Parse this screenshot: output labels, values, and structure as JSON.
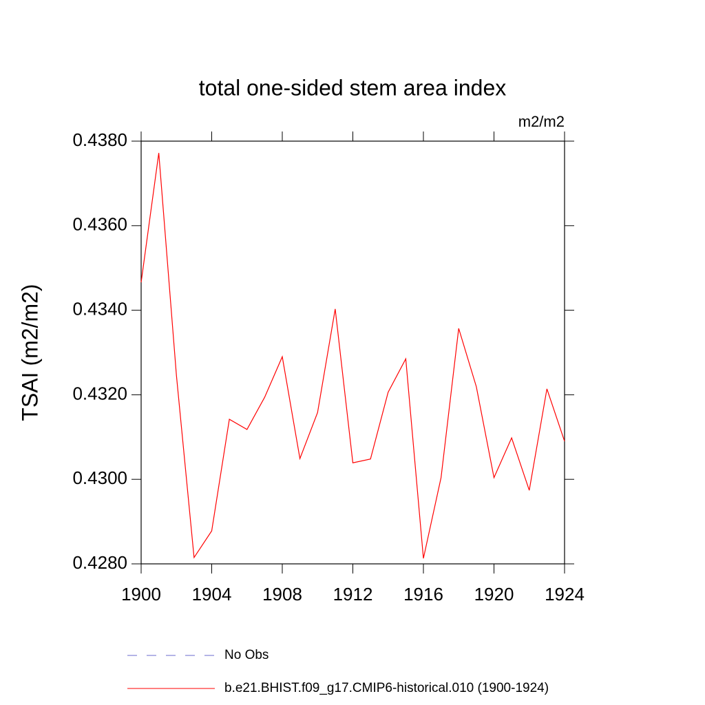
{
  "chart_data": {
    "type": "line",
    "title": "total one-sided stem area index",
    "units": "m2/m2",
    "y_label": "TSAI  (m2/m2)",
    "x": [
      1900,
      1901,
      1902,
      1903,
      1904,
      1905,
      1906,
      1907,
      1908,
      1909,
      1910,
      1911,
      1912,
      1913,
      1914,
      1915,
      1916,
      1917,
      1918,
      1919,
      1920,
      1921,
      1922,
      1923,
      1924
    ],
    "series": [
      {
        "name": "No Obs",
        "color": "#6a6acd",
        "dashed": true,
        "values": [
          null,
          null,
          null,
          null,
          null,
          null,
          null,
          null,
          null,
          null,
          null,
          null,
          null,
          null,
          null,
          null,
          null,
          null,
          null,
          null,
          null,
          null,
          null,
          null,
          null
        ]
      },
      {
        "name": "b.e21.BHIST.f09_g17.CMIP6-historical.010 (1900-1924)",
        "color": "#ff0000",
        "dashed": false,
        "values": [
          0.43466,
          0.43772,
          0.43246,
          0.42815,
          0.42878,
          0.43142,
          0.43118,
          0.43194,
          0.4329,
          0.43049,
          0.43158,
          0.43403,
          0.43039,
          0.43048,
          0.43206,
          0.43285,
          0.42813,
          0.43004,
          0.43357,
          0.43219,
          0.43004,
          0.43098,
          0.42974,
          0.43214,
          0.4309
        ]
      }
    ],
    "xlim": [
      1900,
      1924
    ],
    "ylim": [
      0.428,
      0.438
    ],
    "xticks": [
      1900,
      1904,
      1908,
      1912,
      1916,
      1920,
      1924
    ],
    "yticks": [
      {
        "value": 0.428,
        "label": "0.4280"
      },
      {
        "value": 0.43,
        "label": "0.4300"
      },
      {
        "value": 0.432,
        "label": "0.4320"
      },
      {
        "value": 0.434,
        "label": "0.4340"
      },
      {
        "value": 0.436,
        "label": "0.4360"
      },
      {
        "value": 0.438,
        "label": "0.4380"
      }
    ],
    "grid": false
  }
}
